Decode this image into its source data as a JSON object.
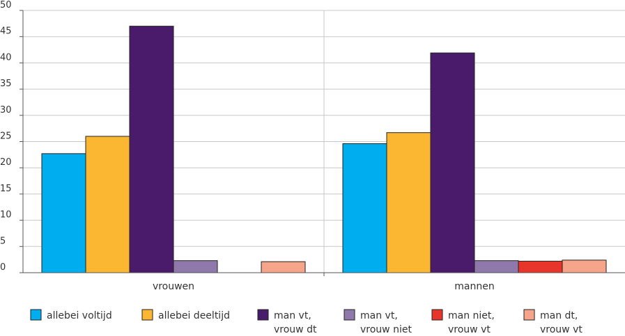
{
  "chart_data": {
    "type": "bar",
    "categories": [
      "vrouwen",
      "mannen"
    ],
    "ylim": [
      0,
      50
    ],
    "yticks": [
      0,
      5,
      10,
      15,
      20,
      25,
      30,
      35,
      40,
      45,
      50
    ],
    "grid": true,
    "legend_position": "bottom",
    "series": [
      {
        "name": [
          "allebei voltijd"
        ],
        "color": "#00aeef",
        "values": [
          22.7,
          24.6
        ]
      },
      {
        "name": [
          "allebei deeltijd"
        ],
        "color": "#fbb731",
        "values": [
          26.0,
          26.7
        ]
      },
      {
        "name": [
          "man vt,",
          "vrouw dt"
        ],
        "color": "#4a1a6b",
        "values": [
          47.0,
          41.9
        ]
      },
      {
        "name": [
          "man vt,",
          "vrouw niet"
        ],
        "color": "#8e79aa",
        "values": [
          2.3,
          2.3
        ]
      },
      {
        "name": [
          "man niet,",
          "vrouw vt"
        ],
        "color": "#e8352c",
        "values": [
          0,
          2.2
        ]
      },
      {
        "name": [
          "man dt,",
          "vrouw vt"
        ],
        "color": "#f7a58a",
        "values": [
          2.1,
          2.4
        ]
      }
    ]
  }
}
